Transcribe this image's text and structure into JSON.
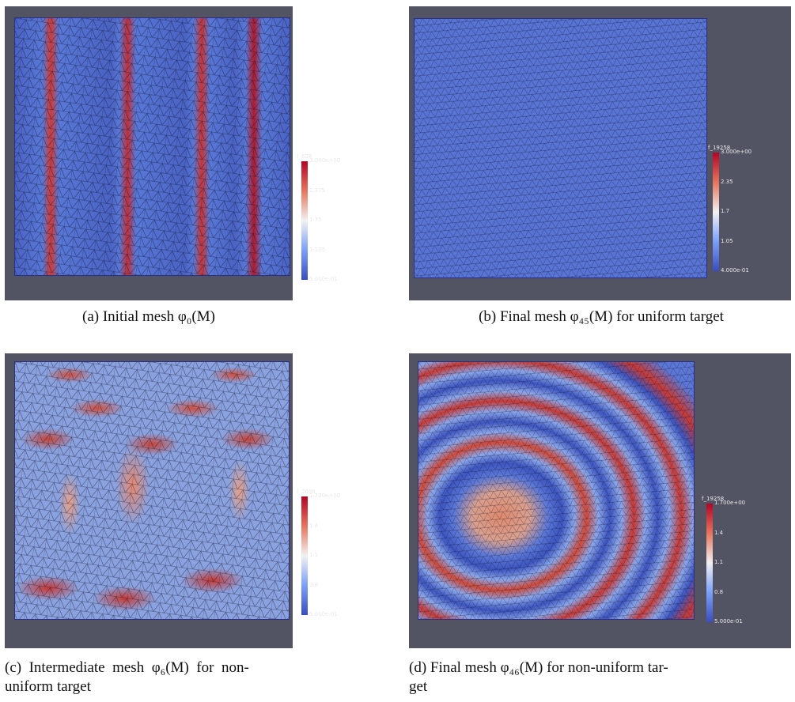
{
  "panels": [
    {
      "caption": [
        "(a) Initial mesh φ₀(M)"
      ],
      "colorbar": {
        "title": "f_628",
        "ticks": [
          "3.000e+00",
          "2.375",
          "1.75",
          "1.125",
          "5.000e-01"
        ]
      }
    },
    {
      "caption": [
        "(b) Final mesh φ₄₅(M) for uniform target"
      ],
      "colorbar": {
        "title": "f_19258",
        "ticks": [
          "3.000e+00",
          "2.35",
          "1.7",
          "1.05",
          "4.000e-01"
        ]
      }
    },
    {
      "caption": [
        "(c)  Intermediate  mesh  φ₆(M)  for  non-",
        "uniform target"
      ],
      "colorbar": {
        "title": "f_2698",
        "ticks": [
          "1.700e+00",
          "1.4",
          "1.1",
          "0.8",
          "5.000e-01"
        ]
      }
    },
    {
      "caption": [
        "(d) Final mesh φ₄₆(M) for non-uniform tar-",
        "get"
      ],
      "colorbar": {
        "title": "f_19258",
        "ticks": [
          "1.700e+00",
          "1.4",
          "1.1",
          "0.8",
          "5.000e-01"
        ]
      }
    }
  ]
}
